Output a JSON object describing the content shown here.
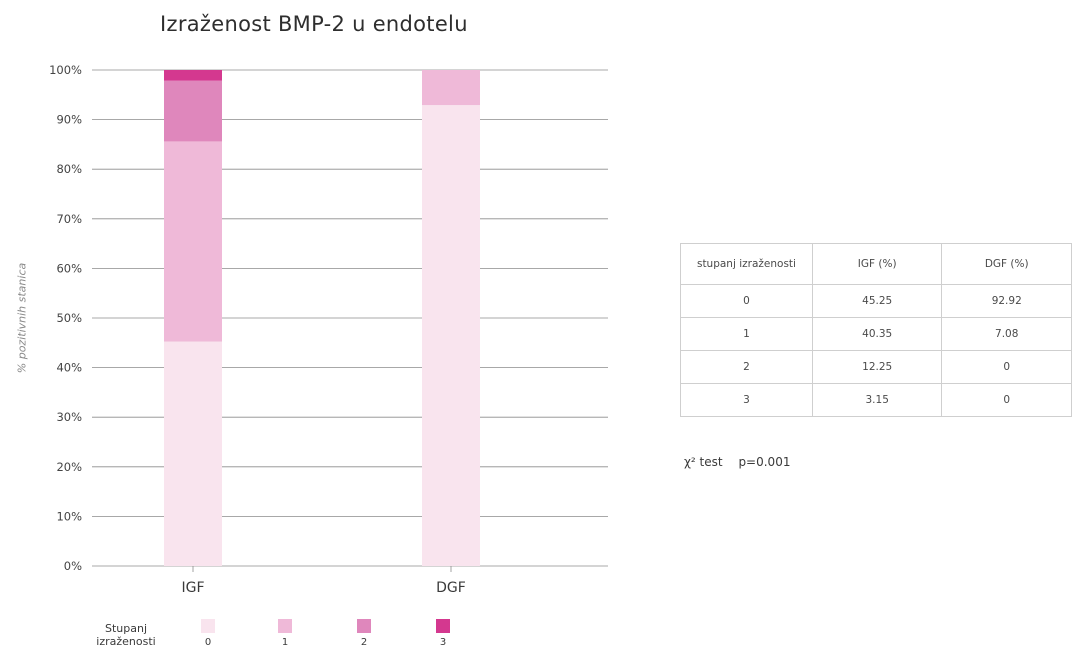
{
  "chart_data": {
    "type": "bar",
    "stacked": true,
    "title": "Izraženost BMP-2 u endotelu",
    "ylabel": "% pozitivnih stanica",
    "xlabel": "",
    "ylim": [
      0,
      100
    ],
    "yticks": [
      "0%",
      "10%",
      "20%",
      "30%",
      "40%",
      "50%",
      "60%",
      "70%",
      "80%",
      "90%",
      "100%"
    ],
    "categories": [
      "IGF",
      "DGF"
    ],
    "series": [
      {
        "name": "0",
        "values": [
          45.25,
          92.92
        ],
        "color": "#f9e4ee"
      },
      {
        "name": "1",
        "values": [
          40.35,
          7.08
        ],
        "color": "#efb9d8"
      },
      {
        "name": "2",
        "values": [
          12.25,
          0
        ],
        "color": "#df87bc"
      },
      {
        "name": "3",
        "values": [
          3.15,
          0
        ],
        "color": "#d4388f"
      }
    ],
    "grid": true,
    "legend": {
      "title": "Stupanj izraženosti",
      "position": "bottom"
    }
  },
  "table": {
    "headers": [
      "stupanj izraženosti",
      "IGF (%)",
      "DGF (%)"
    ],
    "rows": [
      [
        "0",
        "45.25",
        "92.92"
      ],
      [
        "1",
        "40.35",
        "7.08"
      ],
      [
        "2",
        "12.25",
        "0"
      ],
      [
        "3",
        "3.15",
        "0"
      ]
    ]
  },
  "chi": {
    "label": "χ² test",
    "p": "p=0.001"
  }
}
